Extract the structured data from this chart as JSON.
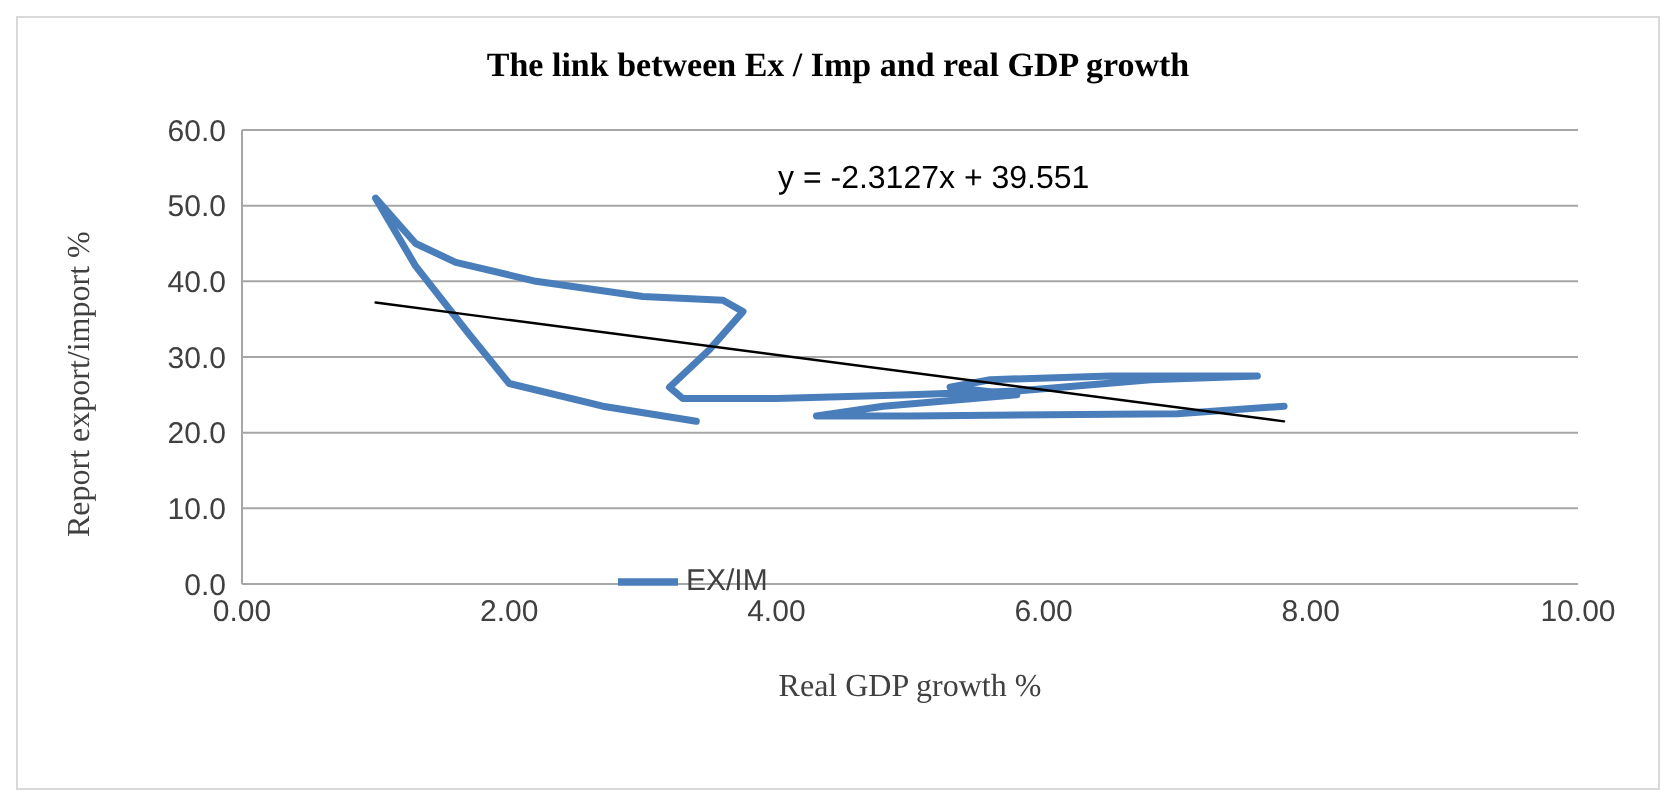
{
  "chart_data": {
    "type": "line",
    "title": "The link between Ex / Imp and real GDP growth",
    "xlabel": "Real GDP growth %",
    "ylabel": "Report export/import %",
    "annotations": [
      "y = -2.3127x + 39.551"
    ],
    "series": [
      {
        "name": "EX/IM",
        "color": "#4a7ebb",
        "x": [
          3.4,
          2.7,
          2.0,
          1.7,
          1.3,
          1.0,
          1.3,
          1.6,
          2.2,
          3.0,
          3.6,
          3.75,
          3.5,
          3.2,
          3.3,
          4.0,
          5.0,
          5.8,
          6.8,
          7.6,
          6.5,
          5.6,
          5.3,
          5.8,
          4.8,
          4.3,
          5.0,
          7.0,
          7.8
        ],
        "values": [
          21.5,
          23.5,
          26.5,
          33,
          42,
          51,
          45,
          42.5,
          40,
          38,
          37.5,
          36,
          31,
          26,
          24.5,
          24.5,
          25,
          25.5,
          27,
          27.5,
          27.5,
          27,
          26,
          25,
          23.5,
          22.2,
          22.2,
          22.5,
          23.5
        ]
      },
      {
        "type": "line",
        "color": "#000000",
        "x": [
          1.0,
          7.8
        ],
        "values": [
          37.2,
          21.5
        ]
      }
    ],
    "xlim": [
      0,
      10
    ],
    "xticks": [
      {
        "value": 0,
        "label": "0.00"
      },
      {
        "value": 2,
        "label": "2.00"
      },
      {
        "value": 4,
        "label": "4.00"
      },
      {
        "value": 6,
        "label": "6.00"
      },
      {
        "value": 8,
        "label": "8.00"
      },
      {
        "value": 10,
        "label": "10.00"
      }
    ],
    "ylim": [
      0,
      60
    ],
    "yticks": [
      {
        "value": 0,
        "label": "0.0"
      },
      {
        "value": 10,
        "label": "10.0"
      },
      {
        "value": 20,
        "label": "20.0"
      },
      {
        "value": 30,
        "label": "30.0"
      },
      {
        "value": 40,
        "label": "40.0"
      },
      {
        "value": 50,
        "label": "50.0"
      },
      {
        "value": 60,
        "label": "60.0"
      }
    ],
    "grid": "y",
    "legend": "bottom left",
    "marker": "none",
    "line_style": "solid"
  }
}
